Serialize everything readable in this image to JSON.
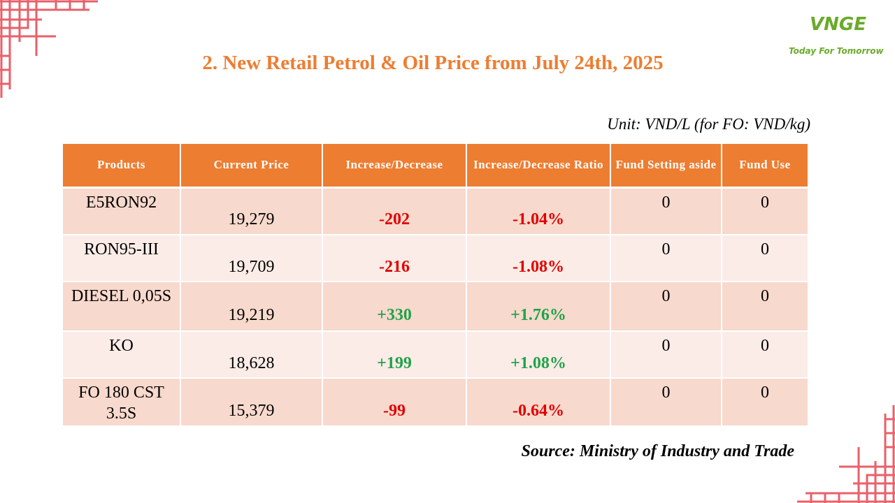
{
  "brand": {
    "logo_text": "VNGE",
    "tagline": "Today For Tomorrow",
    "accent_color": "#ed7d31",
    "logo_color": "#6aaa2a",
    "negative_color": "#e00000",
    "positive_color": "#1fa34a"
  },
  "title": "2. New Retail Petrol & Oil Price from July 24th, 2025",
  "unit": "Unit: VND/L (for FO: VND/kg)",
  "source": "Source: Ministry of Industry and Trade",
  "table": {
    "headers": [
      "Products",
      "Current Price",
      "Increase/Decrease",
      "Increase/Decrease Ratio",
      "Fund Setting aside",
      "Fund Use"
    ],
    "rows": [
      {
        "product": "E5RON92",
        "price": "19,279",
        "change": "-202",
        "ratio": "-1.04%",
        "fund_setting": "0",
        "fund_use": "0",
        "direction": "down"
      },
      {
        "product": "RON95-III",
        "price": "19,709",
        "change": "-216",
        "ratio": "-1.08%",
        "fund_setting": "0",
        "fund_use": "0",
        "direction": "down"
      },
      {
        "product": "DIESEL 0,05S",
        "price": "19,219",
        "change": "+330",
        "ratio": "+1.76%",
        "fund_setting": "0",
        "fund_use": "0",
        "direction": "up"
      },
      {
        "product": "KO",
        "price": "18,628",
        "change": "+199",
        "ratio": "+1.08%",
        "fund_setting": "0",
        "fund_use": "0",
        "direction": "up"
      },
      {
        "product": "FO 180 CST 3.5S",
        "price": "15,379",
        "change": "-99",
        "ratio": "-0.64%",
        "fund_setting": "0",
        "fund_use": "0",
        "direction": "down"
      }
    ]
  }
}
